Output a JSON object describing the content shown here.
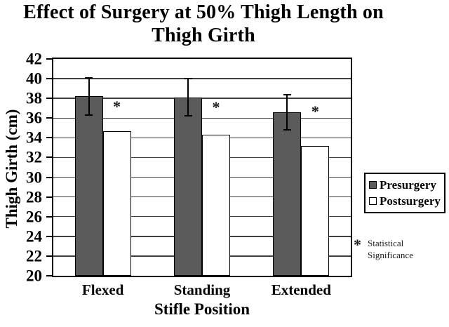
{
  "chart_data": {
    "type": "bar",
    "title": "Effect of Surgery at 50% Thigh Length on Thigh Girth",
    "title_lines": [
      "Effect of Surgery at 50% Thigh Length on",
      "Thigh Girth"
    ],
    "xlabel": "Stifle Position",
    "ylabel": "Thigh Girth (cm)",
    "ylim": [
      20,
      42
    ],
    "ytick_step": 2,
    "y_tick_labels": [
      "20",
      "22",
      "24",
      "26",
      "28",
      "30",
      "32",
      "34",
      "36",
      "38",
      "40",
      "42"
    ],
    "grid": true,
    "plot_background": "#ffffff",
    "categories": [
      "Flexed",
      "Standing",
      "Extended"
    ],
    "series": [
      {
        "name": "Presurgery",
        "fill": "#5a5a5a",
        "values": [
          38.2,
          38.1,
          36.6
        ],
        "error_bars": [
          1.9,
          1.9,
          1.8
        ]
      },
      {
        "name": "Postsurgery",
        "fill": "#ffffff",
        "values": [
          34.7,
          34.3,
          33.2
        ]
      }
    ],
    "significance_markers": [
      {
        "category": "Flexed",
        "symbol": "*",
        "value": 37.3
      },
      {
        "category": "Standing",
        "symbol": "*",
        "value": 37.2
      },
      {
        "category": "Extended",
        "symbol": "*",
        "value": 36.8
      }
    ],
    "legend": {
      "position": "right",
      "items": [
        {
          "label": "Presurgery",
          "fill": "#5a5a5a"
        },
        {
          "label": "Postsurgery",
          "fill": "#ffffff"
        }
      ]
    },
    "footnote": {
      "symbol": "*",
      "lines": [
        "Statistical",
        "Significance"
      ]
    }
  },
  "colors": {
    "axis": "#000000",
    "gridline": "#3f3f3f",
    "bar_border": "#000000"
  }
}
